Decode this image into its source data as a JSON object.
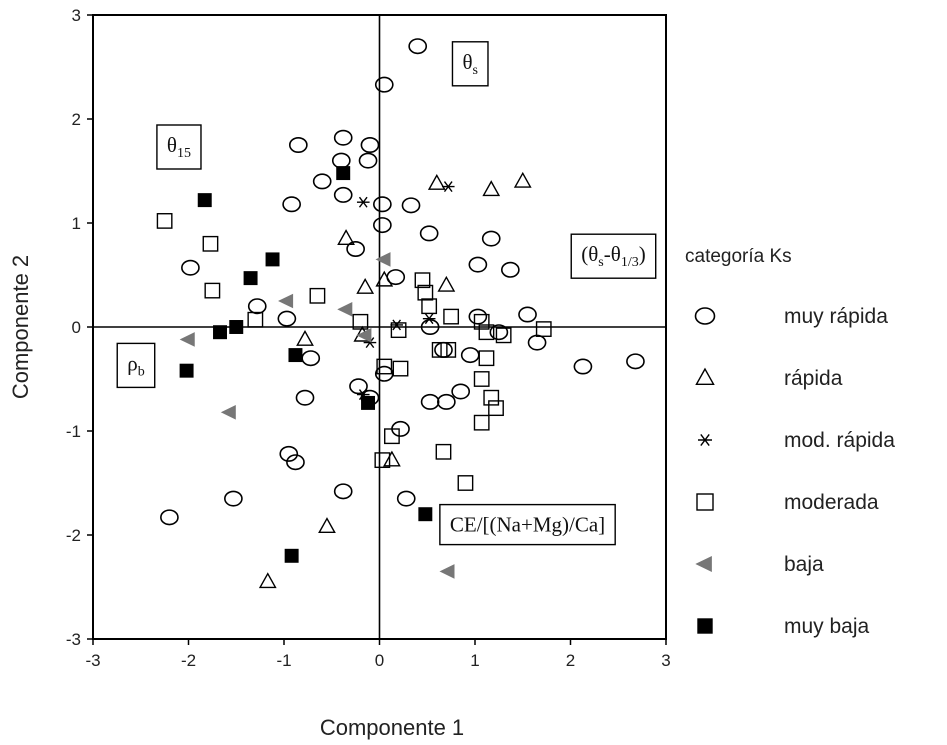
{
  "chart_data": {
    "type": "scatter",
    "xlabel": "Componente 1",
    "ylabel": "Componente 2",
    "xlim": [
      -3,
      3
    ],
    "ylim": [
      -3,
      3
    ],
    "x_ticks": [
      "-3",
      "-2",
      "-1",
      "0",
      "1",
      "2",
      "3"
    ],
    "y_ticks": [
      "3",
      "2",
      "1",
      "0",
      "-1",
      "-2",
      "-3"
    ],
    "grid": false,
    "legend_title": "categoría Ks",
    "legend_position": "right",
    "annotations": [
      {
        "id": "theta_s",
        "text": "θ",
        "sub": "s",
        "x": 0.95,
        "y": 2.55
      },
      {
        "id": "theta_15",
        "text": "θ",
        "sub": "15",
        "x": -2.1,
        "y": 1.75
      },
      {
        "id": "theta_diff",
        "text": "(θ",
        "sub": "s",
        "mid": "-θ",
        "sub2": "1/3",
        "end": ")",
        "x": 2.45,
        "y": 0.7
      },
      {
        "id": "rho_b",
        "text": "ρ",
        "sub": "b",
        "x": -2.55,
        "y": -0.35
      },
      {
        "id": "ce_ratio",
        "text": "CE/[(Na+Mg)/Ca]",
        "x": 1.55,
        "y": -1.9
      }
    ],
    "series": [
      {
        "name": "muy rápida",
        "marker": "circle",
        "color": "#000000",
        "points": [
          [
            0.4,
            2.7
          ],
          [
            0.05,
            2.33
          ],
          [
            -0.85,
            1.75
          ],
          [
            -0.38,
            1.82
          ],
          [
            -0.1,
            1.75
          ],
          [
            -0.4,
            1.6
          ],
          [
            -0.12,
            1.6
          ],
          [
            -0.6,
            1.4
          ],
          [
            -0.38,
            1.27
          ],
          [
            -0.92,
            1.18
          ],
          [
            0.03,
            1.18
          ],
          [
            0.33,
            1.17
          ],
          [
            0.03,
            0.98
          ],
          [
            0.52,
            0.9
          ],
          [
            1.17,
            0.85
          ],
          [
            -0.25,
            0.75
          ],
          [
            -1.98,
            0.57
          ],
          [
            1.03,
            0.6
          ],
          [
            1.37,
            0.55
          ],
          [
            0.17,
            0.48
          ],
          [
            -1.28,
            0.2
          ],
          [
            -0.97,
            0.08
          ],
          [
            1.55,
            0.12
          ],
          [
            1.03,
            0.1
          ],
          [
            0.53,
            0.0
          ],
          [
            1.25,
            -0.05
          ],
          [
            0.67,
            -0.22
          ],
          [
            0.95,
            -0.27
          ],
          [
            1.65,
            -0.15
          ],
          [
            2.13,
            -0.38
          ],
          [
            2.68,
            -0.33
          ],
          [
            -0.72,
            -0.3
          ],
          [
            0.05,
            -0.45
          ],
          [
            0.85,
            -0.62
          ],
          [
            -0.22,
            -0.57
          ],
          [
            -0.78,
            -0.68
          ],
          [
            -0.1,
            -0.68
          ],
          [
            0.53,
            -0.72
          ],
          [
            0.7,
            -0.72
          ],
          [
            0.22,
            -0.98
          ],
          [
            -0.95,
            -1.22
          ],
          [
            -0.88,
            -1.3
          ],
          [
            -0.38,
            -1.58
          ],
          [
            -1.53,
            -1.65
          ],
          [
            0.28,
            -1.65
          ],
          [
            -2.2,
            -1.83
          ]
        ]
      },
      {
        "name": "rápida",
        "marker": "triangle",
        "color": "#000000",
        "points": [
          [
            0.6,
            1.38
          ],
          [
            1.17,
            1.32
          ],
          [
            1.5,
            1.4
          ],
          [
            -0.35,
            0.85
          ],
          [
            0.7,
            0.4
          ],
          [
            0.05,
            0.45
          ],
          [
            -0.15,
            0.38
          ],
          [
            -0.78,
            -0.12
          ],
          [
            -0.18,
            -0.08
          ],
          [
            0.13,
            -1.28
          ],
          [
            -0.55,
            -1.92
          ],
          [
            -1.17,
            -2.45
          ]
        ]
      },
      {
        "name": "mod. rápida",
        "marker": "star",
        "color": "#000000",
        "points": [
          [
            0.72,
            1.35
          ],
          [
            -0.17,
            1.2
          ],
          [
            0.18,
            0.02
          ],
          [
            0.52,
            0.08
          ],
          [
            -0.1,
            -0.15
          ],
          [
            -0.17,
            -0.65
          ]
        ]
      },
      {
        "name": "moderada",
        "marker": "square",
        "color": "#000000",
        "points": [
          [
            -2.25,
            1.02
          ],
          [
            -1.77,
            0.8
          ],
          [
            -1.75,
            0.35
          ],
          [
            -0.65,
            0.3
          ],
          [
            -1.3,
            0.07
          ],
          [
            -0.2,
            0.05
          ],
          [
            0.45,
            0.45
          ],
          [
            0.48,
            0.33
          ],
          [
            0.52,
            0.2
          ],
          [
            0.75,
            0.1
          ],
          [
            1.07,
            0.05
          ],
          [
            1.12,
            -0.05
          ],
          [
            1.3,
            -0.08
          ],
          [
            1.72,
            -0.02
          ],
          [
            0.2,
            -0.03
          ],
          [
            0.72,
            -0.22
          ],
          [
            0.63,
            -0.22
          ],
          [
            1.12,
            -0.3
          ],
          [
            0.05,
            -0.38
          ],
          [
            0.22,
            -0.4
          ],
          [
            1.07,
            -0.5
          ],
          [
            1.17,
            -0.68
          ],
          [
            1.22,
            -0.78
          ],
          [
            1.07,
            -0.92
          ],
          [
            0.13,
            -1.05
          ],
          [
            0.03,
            -1.28
          ],
          [
            0.67,
            -1.2
          ],
          [
            0.9,
            -1.5
          ]
        ]
      },
      {
        "name": "baja",
        "marker": "triangle-left",
        "color": "#777777",
        "points": [
          [
            0.05,
            0.65
          ],
          [
            -0.97,
            0.25
          ],
          [
            -0.35,
            0.17
          ],
          [
            -2.0,
            -0.12
          ],
          [
            -0.15,
            -0.08
          ],
          [
            -1.57,
            -0.82
          ],
          [
            0.72,
            -2.35
          ]
        ]
      },
      {
        "name": "muy baja",
        "marker": "filled-square",
        "color": "#000000",
        "points": [
          [
            -0.38,
            1.48
          ],
          [
            -1.83,
            1.22
          ],
          [
            -1.35,
            0.47
          ],
          [
            -1.12,
            0.65
          ],
          [
            -1.67,
            -0.05
          ],
          [
            -1.5,
            0.0
          ],
          [
            -2.02,
            -0.42
          ],
          [
            -0.88,
            -0.27
          ],
          [
            -0.12,
            -0.73
          ],
          [
            0.48,
            -1.8
          ],
          [
            -0.92,
            -2.2
          ]
        ]
      }
    ]
  }
}
